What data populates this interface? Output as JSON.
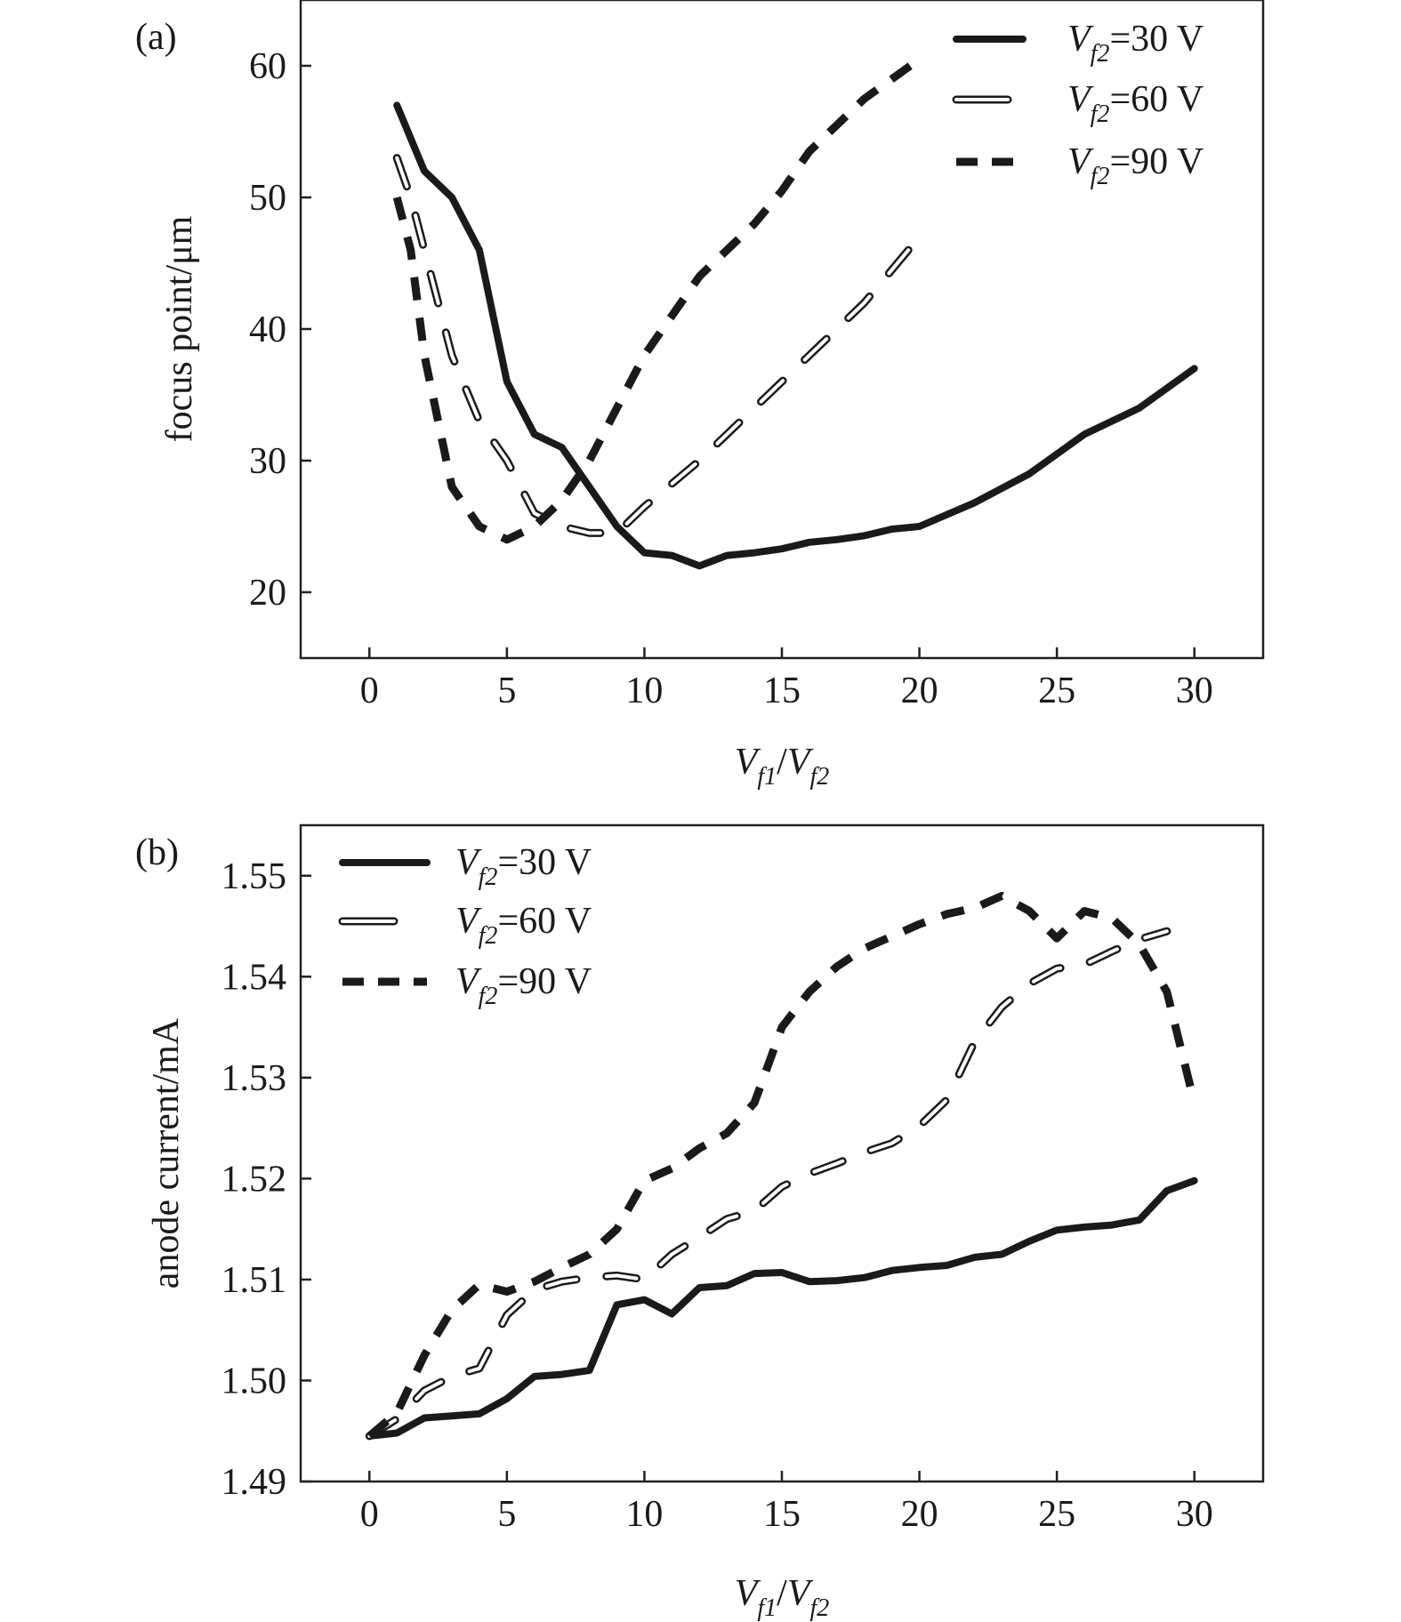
{
  "chart_data": [
    {
      "type": "line",
      "panel_label": "(a)",
      "xlabel": "V_f1/V_f2",
      "ylabel": "focus point/μm",
      "xlim": [
        -2.5,
        32.5
      ],
      "ylim": [
        15,
        65
      ],
      "xticks": [
        0,
        5,
        10,
        15,
        20,
        25,
        30
      ],
      "yticks": [
        20,
        30,
        40,
        50,
        60
      ],
      "legend_position": "top-right",
      "series": [
        {
          "name": "V_f2=30 V",
          "label_main": "V",
          "label_sub": "f2",
          "label_rest": "=30 V",
          "style": "solid",
          "x": [
            1,
            2,
            3,
            4,
            5,
            6,
            7,
            8,
            9,
            10,
            11,
            12,
            13,
            14,
            15,
            16,
            17,
            18,
            19,
            20,
            22,
            24,
            26,
            28,
            30
          ],
          "y": [
            57,
            52,
            50,
            46,
            36,
            32,
            31,
            28,
            25,
            23,
            22.8,
            22,
            22.8,
            23,
            23.3,
            23.8,
            24,
            24.3,
            24.8,
            25,
            26.8,
            29,
            32,
            34,
            37
          ]
        },
        {
          "name": "V_f2=60 V",
          "label_main": "V",
          "label_sub": "f2",
          "label_rest": "=60 V",
          "style": "hollow-dash",
          "x": [
            1,
            1.5,
            2,
            3,
            4,
            5,
            6,
            7,
            8,
            9,
            10,
            12,
            14,
            16,
            18,
            20
          ],
          "y": [
            53,
            50,
            46,
            38,
            33,
            30,
            26,
            25,
            24.5,
            24.5,
            26.5,
            30,
            34,
            38,
            42,
            47
          ]
        },
        {
          "name": "V_f2=90 V",
          "label_main": "V",
          "label_sub": "f2",
          "label_rest": "=90 V",
          "style": "dashed",
          "x": [
            1,
            1.5,
            2,
            3,
            4,
            5,
            6,
            7,
            8,
            9,
            10,
            11,
            12,
            13,
            14,
            15,
            16,
            17,
            18,
            19,
            20
          ],
          "y": [
            50,
            46,
            38,
            28,
            25,
            24,
            25,
            27,
            30,
            34,
            38,
            41,
            44,
            46,
            48,
            50.5,
            53.5,
            55.5,
            57.5,
            59,
            60.5
          ]
        }
      ]
    },
    {
      "type": "line",
      "panel_label": "(b)",
      "xlabel": "V_f1/V_f2",
      "ylabel": "anode current/mA",
      "xlim": [
        -2.5,
        32.5
      ],
      "ylim": [
        1.49,
        1.555
      ],
      "xticks": [
        0,
        5,
        10,
        15,
        20,
        25,
        30
      ],
      "yticks": [
        1.49,
        1.5,
        1.51,
        1.52,
        1.53,
        1.54,
        1.55
      ],
      "ytick_labels": [
        "1.49",
        "1.50",
        "1.51",
        "1.52",
        "1.53",
        "1.54",
        "1.55"
      ],
      "legend_position": "top-left",
      "series": [
        {
          "name": "V_f2=30 V",
          "label_main": "V",
          "label_sub": "f2",
          "label_rest": "=30 V",
          "style": "solid",
          "x": [
            0,
            1,
            2,
            3,
            4,
            5,
            6,
            7,
            8,
            9,
            10,
            11,
            12,
            13,
            14,
            15,
            16,
            17,
            18,
            19,
            20,
            21,
            22,
            23,
            24,
            25,
            26,
            27,
            28,
            29,
            30
          ],
          "y": [
            1.4945,
            1.4948,
            1.4963,
            1.4965,
            1.4967,
            1.4982,
            1.5004,
            1.5006,
            1.501,
            1.5075,
            1.508,
            1.5066,
            1.5092,
            1.5094,
            1.5106,
            1.5107,
            1.5098,
            1.5099,
            1.5102,
            1.5109,
            1.5112,
            1.5114,
            1.5122,
            1.5125,
            1.5138,
            1.5149,
            1.5152,
            1.5154,
            1.5159,
            1.5188,
            1.5198
          ]
        },
        {
          "name": "V_f2=60 V",
          "label_main": "V",
          "label_sub": "f2",
          "label_rest": "=60 V",
          "style": "hollow-dash",
          "x": [
            0,
            1,
            2,
            3,
            4,
            5,
            6,
            7,
            8,
            9,
            10,
            11,
            12,
            13,
            14,
            15,
            16,
            17,
            18,
            19,
            20,
            21,
            22,
            23,
            24,
            25,
            26,
            27,
            28,
            29
          ],
          "y": [
            1.4945,
            1.4962,
            1.499,
            1.5004,
            1.5012,
            1.5065,
            1.509,
            1.5098,
            1.5102,
            1.5104,
            1.51,
            1.5125,
            1.5142,
            1.516,
            1.5168,
            1.5192,
            1.5205,
            1.5215,
            1.5226,
            1.5235,
            1.5252,
            1.5278,
            1.5335,
            1.537,
            1.5393,
            1.5408,
            1.5412,
            1.5425,
            1.5437,
            1.5445
          ]
        },
        {
          "name": "V_f2=90 V",
          "label_main": "V",
          "label_sub": "f2",
          "label_rest": "=90 V",
          "style": "dashed",
          "x": [
            0,
            1,
            2,
            3,
            4,
            5,
            6,
            7,
            8,
            9,
            10,
            11,
            12,
            13,
            14,
            15,
            16,
            17,
            18,
            19,
            20,
            21,
            22,
            23,
            24,
            25,
            26,
            27,
            28,
            29,
            30
          ],
          "y": [
            1.4945,
            1.4968,
            1.5025,
            1.507,
            1.5095,
            1.5088,
            1.5098,
            1.5112,
            1.5125,
            1.515,
            1.5198,
            1.521,
            1.523,
            1.5245,
            1.5275,
            1.535,
            1.5385,
            1.541,
            1.5428,
            1.544,
            1.5452,
            1.5462,
            1.5468,
            1.548,
            1.5465,
            1.5438,
            1.5465,
            1.5458,
            1.5432,
            1.5385,
            1.5275
          ]
        }
      ]
    }
  ]
}
